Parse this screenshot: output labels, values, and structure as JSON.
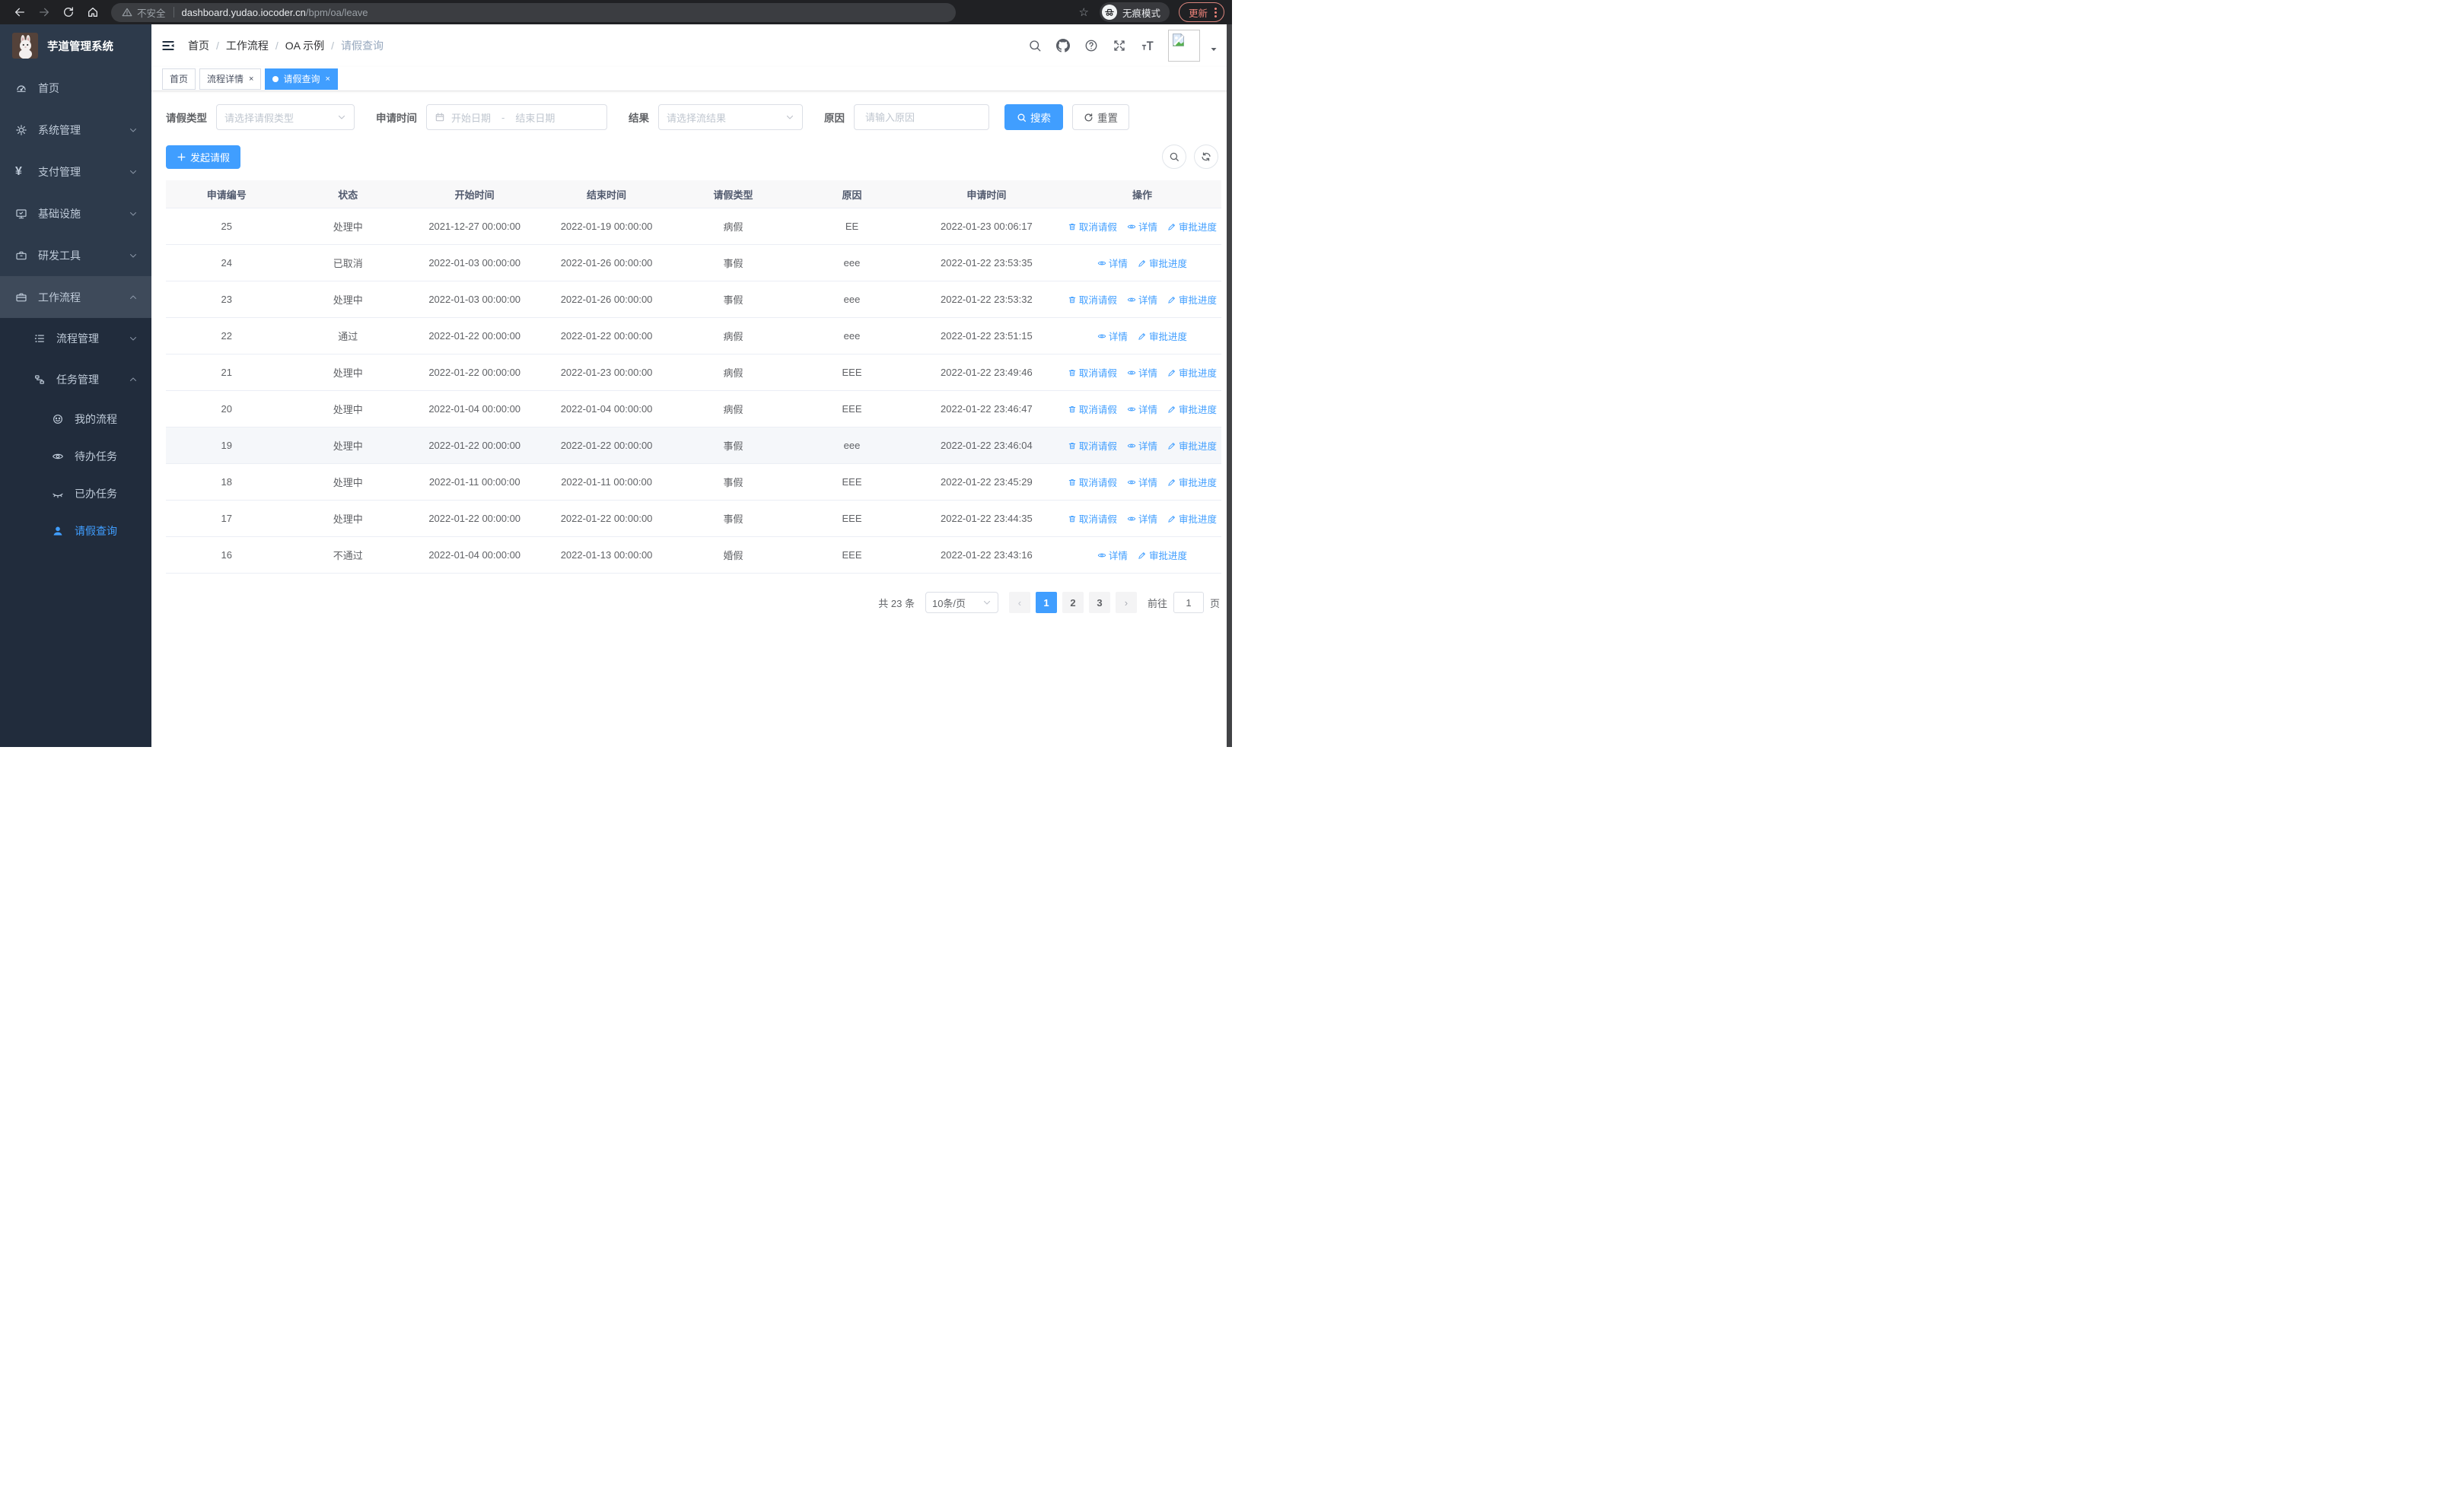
{
  "browser": {
    "security_label": "不安全",
    "url_host": "dashboard.yudao.iocoder.cn",
    "url_path": "/bpm/oa/leave",
    "incognito_label": "无痕模式",
    "update_label": "更新"
  },
  "sidebar": {
    "title": "芋道管理系统",
    "menu": [
      {
        "label": "首页",
        "icon": "dashboard-icon",
        "level": 0
      },
      {
        "label": "系统管理",
        "icon": "gear-icon",
        "level": 0,
        "arrow": "down"
      },
      {
        "label": "支付管理",
        "icon": "yen-icon",
        "level": 0,
        "arrow": "down"
      },
      {
        "label": "基础设施",
        "icon": "monitor-icon",
        "level": 0,
        "arrow": "down"
      },
      {
        "label": "研发工具",
        "icon": "toolbox-icon",
        "level": 0,
        "arrow": "down"
      },
      {
        "label": "工作流程",
        "icon": "briefcase-icon",
        "level": 0,
        "arrow": "up",
        "highlight": true
      },
      {
        "label": "流程管理",
        "icon": "list-tree-icon",
        "level": 1,
        "arrow": "down",
        "dark": true
      },
      {
        "label": "任务管理",
        "icon": "flow-icon",
        "level": 1,
        "arrow": "up",
        "dark": true
      },
      {
        "label": "我的流程",
        "icon": "robot-icon",
        "level": 2,
        "dark": true
      },
      {
        "label": "待办任务",
        "icon": "eye-open-icon",
        "level": 2,
        "dark": true
      },
      {
        "label": "已办任务",
        "icon": "eye-closed-icon",
        "level": 2,
        "dark": true
      },
      {
        "label": "请假查询",
        "icon": "user-icon",
        "level": 2,
        "dark": true,
        "active": true
      }
    ]
  },
  "header": {
    "breadcrumb": [
      "首页",
      "工作流程",
      "OA 示例",
      "请假查询"
    ],
    "icon_names": [
      "search-icon",
      "github-icon",
      "help-icon",
      "fullscreen-icon",
      "font-size-icon"
    ]
  },
  "tabs": [
    {
      "label": "首页",
      "closable": false,
      "active": false
    },
    {
      "label": "流程详情",
      "closable": true,
      "active": false
    },
    {
      "label": "请假查询",
      "closable": true,
      "active": true
    }
  ],
  "filters": {
    "leave_type_label": "请假类型",
    "leave_type_placeholder": "请选择请假类型",
    "apply_time_label": "申请时间",
    "start_date_placeholder": "开始日期",
    "range_separator": "-",
    "end_date_placeholder": "结束日期",
    "result_label": "结果",
    "result_placeholder": "请选择流结果",
    "reason_label": "原因",
    "reason_placeholder": "请输入原因",
    "search_label": "搜索",
    "reset_label": "重置"
  },
  "toolbar": {
    "create_label": "发起请假"
  },
  "table": {
    "columns": [
      "申请编号",
      "状态",
      "开始时间",
      "结束时间",
      "请假类型",
      "原因",
      "申请时间",
      "操作"
    ],
    "action_labels": {
      "cancel": "取消请假",
      "detail": "详情",
      "progress": "审批进度"
    },
    "rows": [
      {
        "id": "25",
        "status": "处理中",
        "start": "2021-12-27 00:00:00",
        "end": "2022-01-19 00:00:00",
        "type": "病假",
        "reason": "EE",
        "apply": "2022-01-23 00:06:17",
        "cancel": true
      },
      {
        "id": "24",
        "status": "已取消",
        "start": "2022-01-03 00:00:00",
        "end": "2022-01-26 00:00:00",
        "type": "事假",
        "reason": "eee",
        "apply": "2022-01-22 23:53:35",
        "cancel": false
      },
      {
        "id": "23",
        "status": "处理中",
        "start": "2022-01-03 00:00:00",
        "end": "2022-01-26 00:00:00",
        "type": "事假",
        "reason": "eee",
        "apply": "2022-01-22 23:53:32",
        "cancel": true
      },
      {
        "id": "22",
        "status": "通过",
        "start": "2022-01-22 00:00:00",
        "end": "2022-01-22 00:00:00",
        "type": "病假",
        "reason": "eee",
        "apply": "2022-01-22 23:51:15",
        "cancel": false
      },
      {
        "id": "21",
        "status": "处理中",
        "start": "2022-01-22 00:00:00",
        "end": "2022-01-23 00:00:00",
        "type": "病假",
        "reason": "EEE",
        "apply": "2022-01-22 23:49:46",
        "cancel": true
      },
      {
        "id": "20",
        "status": "处理中",
        "start": "2022-01-04 00:00:00",
        "end": "2022-01-04 00:00:00",
        "type": "病假",
        "reason": "EEE",
        "apply": "2022-01-22 23:46:47",
        "cancel": true
      },
      {
        "id": "19",
        "status": "处理中",
        "start": "2022-01-22 00:00:00",
        "end": "2022-01-22 00:00:00",
        "type": "事假",
        "reason": "eee",
        "apply": "2022-01-22 23:46:04",
        "cancel": true,
        "hover": true
      },
      {
        "id": "18",
        "status": "处理中",
        "start": "2022-01-11 00:00:00",
        "end": "2022-01-11 00:00:00",
        "type": "事假",
        "reason": "EEE",
        "apply": "2022-01-22 23:45:29",
        "cancel": true
      },
      {
        "id": "17",
        "status": "处理中",
        "start": "2022-01-22 00:00:00",
        "end": "2022-01-22 00:00:00",
        "type": "事假",
        "reason": "EEE",
        "apply": "2022-01-22 23:44:35",
        "cancel": true
      },
      {
        "id": "16",
        "status": "不通过",
        "start": "2022-01-04 00:00:00",
        "end": "2022-01-13 00:00:00",
        "type": "婚假",
        "reason": "EEE",
        "apply": "2022-01-22 23:43:16",
        "cancel": false
      }
    ]
  },
  "pagination": {
    "total_label": "共 23 条",
    "page_size_label": "10条/页",
    "pages": [
      "1",
      "2",
      "3"
    ],
    "active_page": "1",
    "goto_label": "前往",
    "goto_value": "1",
    "page_unit_label": "页"
  },
  "colors": {
    "primary": "#409eff",
    "sidebar_bg": "#2d3a4b",
    "sidebar_submenu_bg": "#212c3c"
  }
}
